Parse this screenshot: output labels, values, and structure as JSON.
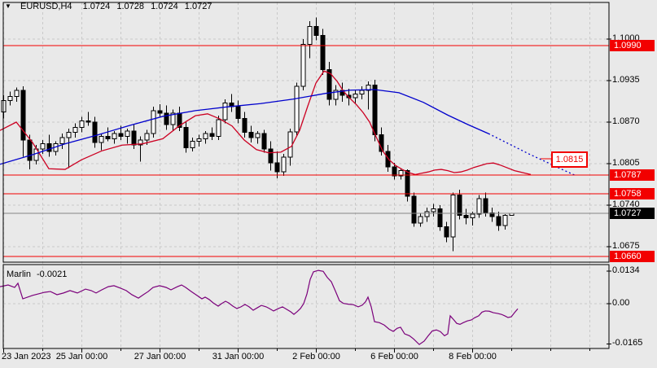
{
  "header": {
    "symbol_period": "EURUSD,H4",
    "open": "1.0724",
    "high": "1.0728",
    "low": "1.0724",
    "close": "1.0727"
  },
  "indicator_header": {
    "name": "Marlin",
    "value": "-0.0021"
  },
  "colors": {
    "bg": "#e9e9e9",
    "grid": "#c9c9c9",
    "frame": "#000000",
    "bull_body": "#ffffff",
    "bear_body": "#000000",
    "wick": "#000000",
    "level_line": "#f20000",
    "badge_red": "#f20000",
    "badge_black": "#000000",
    "badge_text": "#ffffff",
    "current_price_line": "#858585",
    "ma_fast": "#cc0022",
    "ma_slow": "#0000cd",
    "marlin_line": "#7b007b",
    "axis_text": "#000000"
  },
  "chart_data": {
    "type": "candlestick",
    "title": "EURUSD,H4",
    "timeframe": "H4",
    "x_ticks": [
      {
        "bar": 0,
        "label": "23 Jan 2023"
      },
      {
        "bar": 12,
        "label": "25 Jan 00:00"
      },
      {
        "bar": 24,
        "label": "27 Jan 00:00"
      },
      {
        "bar": 36,
        "label": "31 Jan 00:00"
      },
      {
        "bar": 48,
        "label": "2 Feb 00:00"
      },
      {
        "bar": 60,
        "label": "6 Feb 00:00"
      },
      {
        "bar": 72,
        "label": "8 Feb 00:00"
      }
    ],
    "price_axis_ticks": [
      1.1,
      1.0935,
      1.087,
      1.0805,
      1.074,
      1.0675
    ],
    "levels": [
      1.099,
      1.0787,
      1.0758,
      1.066
    ],
    "current_price": 1.0727,
    "forecast_label": "1.0815",
    "candles": [
      [
        1.0886,
        1.0912,
        1.0876,
        1.0904
      ],
      [
        1.0904,
        1.0918,
        1.0896,
        1.091
      ],
      [
        1.091,
        1.0924,
        1.0902,
        1.092
      ],
      [
        1.092,
        1.0926,
        1.0816,
        1.0842
      ],
      [
        1.0842,
        1.085,
        1.0796,
        1.081
      ],
      [
        1.081,
        1.0834,
        1.0804,
        1.0828
      ],
      [
        1.0828,
        1.0842,
        1.082,
        1.0836
      ],
      [
        1.0836,
        1.085,
        1.0816,
        1.0824
      ],
      [
        1.0824,
        1.084,
        1.0818,
        1.0836
      ],
      [
        1.0836,
        1.0852,
        1.0828,
        1.0846
      ],
      [
        1.0846,
        1.086,
        1.0798,
        1.0854
      ],
      [
        1.0854,
        1.0868,
        1.0846,
        1.0862
      ],
      [
        1.0862,
        1.0878,
        1.0854,
        1.0872
      ],
      [
        1.0872,
        1.0886,
        1.0864,
        1.087
      ],
      [
        1.087,
        1.0878,
        1.083,
        1.0838
      ],
      [
        1.0838,
        1.0852,
        1.0826,
        1.0848
      ],
      [
        1.0848,
        1.0862,
        1.084,
        1.0844
      ],
      [
        1.0844,
        1.0856,
        1.0836,
        1.0852
      ],
      [
        1.0852,
        1.0864,
        1.0842,
        1.0848
      ],
      [
        1.0848,
        1.086,
        1.0836,
        1.0856
      ],
      [
        1.0856,
        1.0866,
        1.0828,
        1.0834
      ],
      [
        1.0834,
        1.0848,
        1.0808,
        1.0842
      ],
      [
        1.0842,
        1.0858,
        1.0834,
        1.0852
      ],
      [
        1.0852,
        1.0894,
        1.0846,
        1.0888
      ],
      [
        1.0888,
        1.0898,
        1.0878,
        1.0884
      ],
      [
        1.0884,
        1.0896,
        1.0858,
        1.0866
      ],
      [
        1.0866,
        1.089,
        1.0856,
        1.0884
      ],
      [
        1.0884,
        1.0894,
        1.0856,
        1.0862
      ],
      [
        1.0862,
        1.0872,
        1.0822,
        1.083
      ],
      [
        1.083,
        1.0846,
        1.0824,
        1.084
      ],
      [
        1.084,
        1.085,
        1.0832,
        1.0844
      ],
      [
        1.0844,
        1.0856,
        1.0836,
        1.0852
      ],
      [
        1.0852,
        1.0862,
        1.0842,
        1.0848
      ],
      [
        1.0848,
        1.088,
        1.0842,
        1.0874
      ],
      [
        1.0874,
        1.0906,
        1.0868,
        1.09
      ],
      [
        1.09,
        1.0914,
        1.0886,
        1.0894
      ],
      [
        1.0894,
        1.0904,
        1.0868,
        1.0876
      ],
      [
        1.0876,
        1.0886,
        1.0846,
        1.0854
      ],
      [
        1.0854,
        1.0864,
        1.0838,
        1.0846
      ],
      [
        1.0846,
        1.0856,
        1.0836,
        1.0852
      ],
      [
        1.0852,
        1.0858,
        1.0822,
        1.0828
      ],
      [
        1.0828,
        1.084,
        1.0794,
        1.0806
      ],
      [
        1.0806,
        1.0824,
        1.0782,
        1.0792
      ],
      [
        1.0792,
        1.082,
        1.0786,
        1.0815
      ],
      [
        1.0815,
        1.086,
        1.0802,
        1.0855
      ],
      [
        1.0855,
        1.0932,
        1.0848,
        1.0926
      ],
      [
        1.0926,
        1.1,
        1.092,
        1.0992
      ],
      [
        1.0992,
        1.1028,
        1.097,
        1.102
      ],
      [
        1.102,
        1.1034,
        1.0998,
        1.1006
      ],
      [
        1.1006,
        1.1016,
        1.0944,
        1.0952
      ],
      [
        1.0952,
        1.0964,
        1.0896,
        1.0906
      ],
      [
        1.0906,
        1.0928,
        1.0896,
        1.092
      ],
      [
        1.092,
        1.0932,
        1.0902,
        1.0912
      ],
      [
        1.0912,
        1.0922,
        1.0896,
        1.0908
      ],
      [
        1.0908,
        1.092,
        1.09,
        1.0914
      ],
      [
        1.0914,
        1.0926,
        1.0906,
        1.092
      ],
      [
        1.092,
        1.0934,
        1.089,
        1.0928
      ],
      [
        1.0928,
        1.0936,
        1.084,
        1.085
      ],
      [
        1.085,
        1.0862,
        1.0818,
        1.0824
      ],
      [
        1.0824,
        1.0834,
        1.0792,
        1.08
      ],
      [
        1.08,
        1.0806,
        1.078,
        1.0786
      ],
      [
        1.0786,
        1.0798,
        1.078,
        1.0794
      ],
      [
        1.0794,
        1.0796,
        1.0746,
        1.0754
      ],
      [
        1.0754,
        1.076,
        1.0706,
        1.0712
      ],
      [
        1.0712,
        1.0728,
        1.0706,
        1.0722
      ],
      [
        1.0722,
        1.0736,
        1.0714,
        1.073
      ],
      [
        1.073,
        1.0742,
        1.0722,
        1.0734
      ],
      [
        1.0734,
        1.074,
        1.07,
        1.0706
      ],
      [
        1.0706,
        1.0714,
        1.0682,
        1.069
      ],
      [
        1.069,
        1.076,
        1.0668,
        1.0756
      ],
      [
        1.0756,
        1.0764,
        1.0718,
        1.0724
      ],
      [
        1.0724,
        1.0734,
        1.071,
        1.072
      ],
      [
        1.072,
        1.073,
        1.0708,
        1.0726
      ],
      [
        1.0726,
        1.0756,
        1.072,
        1.075
      ],
      [
        1.075,
        1.076,
        1.0722,
        1.0728
      ],
      [
        1.0728,
        1.0736,
        1.0714,
        1.0722
      ],
      [
        1.0722,
        1.073,
        1.07,
        1.0708
      ],
      [
        1.0708,
        1.0726,
        1.0702,
        1.0724
      ],
      [
        1.0724,
        1.0728,
        1.0724,
        1.0727
      ]
    ],
    "ma_fast": [
      [
        0,
        1.0857
      ],
      [
        20,
        1.087
      ],
      [
        40,
        1.0838
      ],
      [
        60,
        1.0797
      ],
      [
        80,
        1.0796
      ],
      [
        100,
        1.0811
      ],
      [
        125,
        1.0825
      ],
      [
        150,
        1.0834
      ],
      [
        175,
        1.0836
      ],
      [
        200,
        1.0844
      ],
      [
        220,
        1.0864
      ],
      [
        240,
        1.088
      ],
      [
        255,
        1.0883
      ],
      [
        270,
        1.0875
      ],
      [
        285,
        1.0864
      ],
      [
        300,
        1.0842
      ],
      [
        315,
        1.0827
      ],
      [
        330,
        1.0822
      ],
      [
        345,
        1.0823
      ],
      [
        358,
        1.0832
      ],
      [
        368,
        1.0857
      ],
      [
        378,
        1.0895
      ],
      [
        388,
        1.0931
      ],
      [
        398,
        1.095
      ],
      [
        406,
        1.0946
      ],
      [
        414,
        1.0934
      ],
      [
        422,
        1.0918
      ],
      [
        430,
        1.0907
      ],
      [
        438,
        1.0897
      ],
      [
        446,
        1.0885
      ],
      [
        454,
        1.087
      ],
      [
        462,
        1.0847
      ],
      [
        470,
        1.0825
      ],
      [
        478,
        1.0811
      ],
      [
        486,
        1.0802
      ],
      [
        494,
        1.0796
      ],
      [
        502,
        1.0791
      ],
      [
        510,
        1.0788
      ],
      [
        518,
        1.079
      ],
      [
        526,
        1.0792
      ],
      [
        534,
        1.0795
      ],
      [
        542,
        1.0796
      ],
      [
        550,
        1.0794
      ],
      [
        558,
        1.0791
      ],
      [
        566,
        1.0792
      ],
      [
        574,
        1.0795
      ],
      [
        582,
        1.0799
      ],
      [
        590,
        1.0802
      ],
      [
        598,
        1.0805
      ],
      [
        606,
        1.0806
      ],
      [
        614,
        1.0803
      ],
      [
        622,
        1.0799
      ],
      [
        632,
        1.0794
      ],
      [
        642,
        1.0791
      ],
      [
        652,
        1.0788
      ]
    ],
    "ma_slow": [
      [
        0,
        1.0804
      ],
      [
        40,
        1.0819
      ],
      [
        80,
        1.0836
      ],
      [
        120,
        1.085
      ],
      [
        160,
        1.0865
      ],
      [
        200,
        1.0879
      ],
      [
        240,
        1.0888
      ],
      [
        280,
        1.0894
      ],
      [
        320,
        1.0899
      ],
      [
        360,
        1.0906
      ],
      [
        400,
        1.0915
      ],
      [
        430,
        1.092
      ],
      [
        460,
        1.0921
      ],
      [
        490,
        1.0916
      ],
      [
        520,
        1.0901
      ],
      [
        550,
        1.0881
      ],
      [
        575,
        1.0866
      ],
      [
        600,
        1.0852
      ]
    ],
    "ma_slow_forecast": [
      [
        600,
        1.0852
      ],
      [
        625,
        1.0836
      ],
      [
        650,
        1.082
      ],
      [
        672,
        1.0807
      ],
      [
        692,
        1.0795
      ],
      [
        706,
        1.0787
      ]
    ],
    "marlin": {
      "axis": [
        {
          "label": "0.0134",
          "value": 0.0134
        },
        {
          "label": "0.00",
          "value": 0
        },
        {
          "label": "-0.0165",
          "value": -0.0165
        }
      ],
      "last_value": -0.0021,
      "series": [
        [
          0,
          0.007
        ],
        [
          10,
          0.0077
        ],
        [
          18,
          0.0067
        ],
        [
          22,
          0.0084
        ],
        [
          28,
          0.002
        ],
        [
          40,
          0.0034
        ],
        [
          55,
          0.0047
        ],
        [
          62,
          0.005
        ],
        [
          70,
          0.0037
        ],
        [
          78,
          0.0044
        ],
        [
          86,
          0.0054
        ],
        [
          95,
          0.0044
        ],
        [
          105,
          0.006
        ],
        [
          112,
          0.0054
        ],
        [
          118,
          0.0044
        ],
        [
          125,
          0.0057
        ],
        [
          133,
          0.007
        ],
        [
          140,
          0.0074
        ],
        [
          148,
          0.0064
        ],
        [
          155,
          0.0054
        ],
        [
          162,
          0.0037
        ],
        [
          170,
          0.0023
        ],
        [
          176,
          0.0037
        ],
        [
          182,
          0.005
        ],
        [
          188,
          0.0067
        ],
        [
          196,
          0.0074
        ],
        [
          204,
          0.0067
        ],
        [
          210,
          0.0057
        ],
        [
          218,
          0.007
        ],
        [
          223,
          0.0077
        ],
        [
          228,
          0.0067
        ],
        [
          235,
          0.005
        ],
        [
          242,
          0.0034
        ],
        [
          248,
          0.002
        ],
        [
          252,
          0.0027
        ],
        [
          257,
          0.0017
        ],
        [
          262,
          0.0003
        ],
        [
          268,
          -0.001
        ],
        [
          272,
          0.0
        ],
        [
          277,
          0.001
        ],
        [
          281,
          0.0003
        ],
        [
          286,
          -0.001
        ],
        [
          291,
          -0.002
        ],
        [
          296,
          -0.0013
        ],
        [
          301,
          -0.0003
        ],
        [
          306,
          -0.0013
        ],
        [
          311,
          -0.0027
        ],
        [
          316,
          -0.0017
        ],
        [
          321,
          -0.0007
        ],
        [
          327,
          -0.0013
        ],
        [
          331,
          -0.002
        ],
        [
          336,
          -0.003
        ],
        [
          342,
          -0.002
        ],
        [
          347,
          -0.0013
        ],
        [
          352,
          -0.0023
        ],
        [
          357,
          -0.0033
        ],
        [
          361,
          -0.0044
        ],
        [
          365,
          -0.0033
        ],
        [
          369,
          -0.002
        ],
        [
          373,
          0.0
        ],
        [
          377,
          0.004
        ],
        [
          381,
          0.01
        ],
        [
          385,
          0.0131
        ],
        [
          391,
          0.0137
        ],
        [
          397,
          0.0133
        ],
        [
          402,
          0.0108
        ],
        [
          407,
          0.009
        ],
        [
          412,
          0.0052
        ],
        [
          417,
          0.0012
        ],
        [
          422,
          0.0001
        ],
        [
          428,
          -0.0002
        ],
        [
          434,
          -0.0004
        ],
        [
          440,
          -0.0013
        ],
        [
          445,
          -0.0006
        ],
        [
          449,
          0.0008
        ],
        [
          452,
          0.0027
        ],
        [
          456,
          -0.0013
        ],
        [
          460,
          -0.0074
        ],
        [
          466,
          -0.0078
        ],
        [
          472,
          -0.0088
        ],
        [
          478,
          -0.0105
        ],
        [
          483,
          -0.0114
        ],
        [
          488,
          -0.0101
        ],
        [
          492,
          -0.0097
        ],
        [
          497,
          -0.0124
        ],
        [
          503,
          -0.0132
        ],
        [
          508,
          -0.0145
        ],
        [
          515,
          -0.0168
        ],
        [
          521,
          -0.0154
        ],
        [
          526,
          -0.0132
        ],
        [
          531,
          -0.0112
        ],
        [
          536,
          -0.0108
        ],
        [
          541,
          -0.0115
        ],
        [
          546,
          -0.0132
        ],
        [
          550,
          -0.0124
        ],
        [
          553,
          -0.005
        ],
        [
          557,
          -0.0065
        ],
        [
          561,
          -0.0081
        ],
        [
          565,
          -0.0085
        ],
        [
          569,
          -0.0078
        ],
        [
          574,
          -0.0071
        ],
        [
          579,
          -0.0067
        ],
        [
          583,
          -0.0058
        ],
        [
          588,
          -0.005
        ],
        [
          592,
          -0.0035
        ],
        [
          596,
          -0.003
        ],
        [
          601,
          -0.0031
        ],
        [
          606,
          -0.0037
        ],
        [
          611,
          -0.004
        ],
        [
          616,
          -0.0044
        ],
        [
          620,
          -0.005
        ],
        [
          624,
          -0.0057
        ],
        [
          628,
          -0.0054
        ],
        [
          632,
          -0.0037
        ],
        [
          636,
          -0.0021
        ]
      ]
    }
  }
}
